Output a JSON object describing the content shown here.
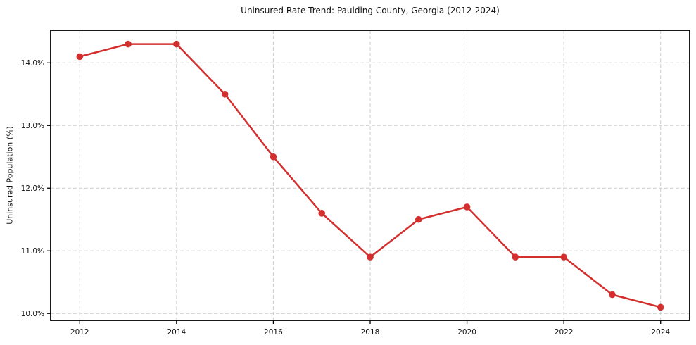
{
  "chart_data": {
    "type": "line",
    "title": "Uninsured Rate Trend: Paulding County, Georgia (2012-2024)",
    "xlabel": "",
    "ylabel": "Uninsured Population (%)",
    "x": [
      2012,
      2013,
      2014,
      2015,
      2016,
      2017,
      2018,
      2019,
      2020,
      2021,
      2022,
      2023,
      2024
    ],
    "values": [
      14.1,
      14.3,
      14.3,
      13.5,
      12.5,
      11.6,
      10.9,
      11.5,
      11.7,
      10.9,
      10.9,
      10.3,
      10.1
    ],
    "x_ticks": [
      2012,
      2014,
      2016,
      2018,
      2020,
      2022,
      2024
    ],
    "x_tick_labels": [
      "2012",
      "2014",
      "2016",
      "2018",
      "2020",
      "2022",
      "2024"
    ],
    "y_ticks": [
      10.0,
      11.0,
      12.0,
      13.0,
      14.0
    ],
    "y_tick_labels": [
      "10.0%",
      "11.0%",
      "12.0%",
      "13.0%",
      "14.0%"
    ],
    "xlim": [
      2011.4,
      2024.6
    ],
    "ylim": [
      9.89,
      14.52
    ],
    "grid": true,
    "grid_style": "dashed",
    "legend_position": "none",
    "line_color": "#d32f2f",
    "marker_color": "#d32f2f",
    "grid_color": "#cccccc",
    "axis_color": "#000000",
    "background": "#ffffff"
  }
}
